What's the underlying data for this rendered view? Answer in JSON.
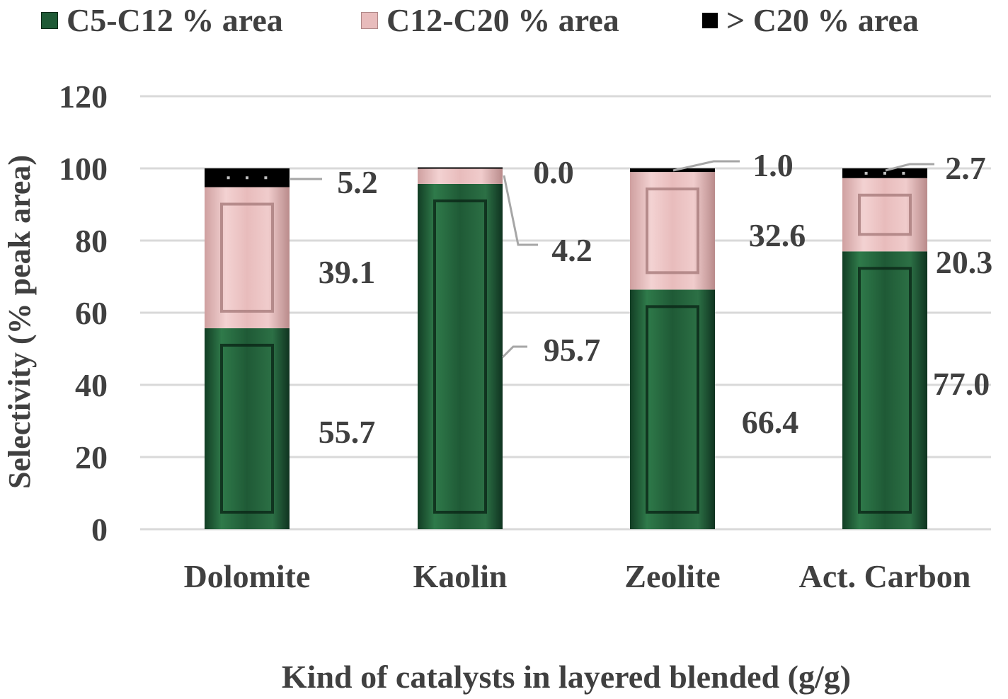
{
  "chart_data": {
    "type": "bar",
    "stacked": true,
    "title": "",
    "xlabel": "Kind of catalysts in layered blended (g/g)",
    "ylabel": "Selectivity (% peak area)",
    "ylim": [
      0,
      120
    ],
    "yticks": [
      0,
      20,
      40,
      60,
      80,
      100,
      120
    ],
    "grid": true,
    "legend_position": "top",
    "categories": [
      "Dolomite",
      "Kaolin",
      "Zeolite",
      "Act. Carbon"
    ],
    "series": [
      {
        "name": "C5-C12 % area",
        "values": [
          55.7,
          95.7,
          66.4,
          77.0
        ],
        "labels": [
          "55.7",
          "95.7",
          "66.4",
          "77.0"
        ],
        "color": "#1f5a36"
      },
      {
        "name": "C12-C20 % area",
        "values": [
          39.1,
          4.2,
          32.6,
          20.3
        ],
        "labels": [
          "39.1",
          "4.2",
          "32.6",
          "20.3"
        ],
        "color": "#e8bcbc"
      },
      {
        "name": "> C20 % area",
        "values": [
          5.2,
          0.0,
          1.0,
          2.7
        ],
        "labels": [
          "5.2",
          "0.0",
          "1.0",
          "2.7"
        ],
        "color": "#000000"
      }
    ]
  },
  "colors": {
    "axis_text": "#404040",
    "gridline": "#d9d9d9",
    "leader": "#a6a6a6"
  }
}
